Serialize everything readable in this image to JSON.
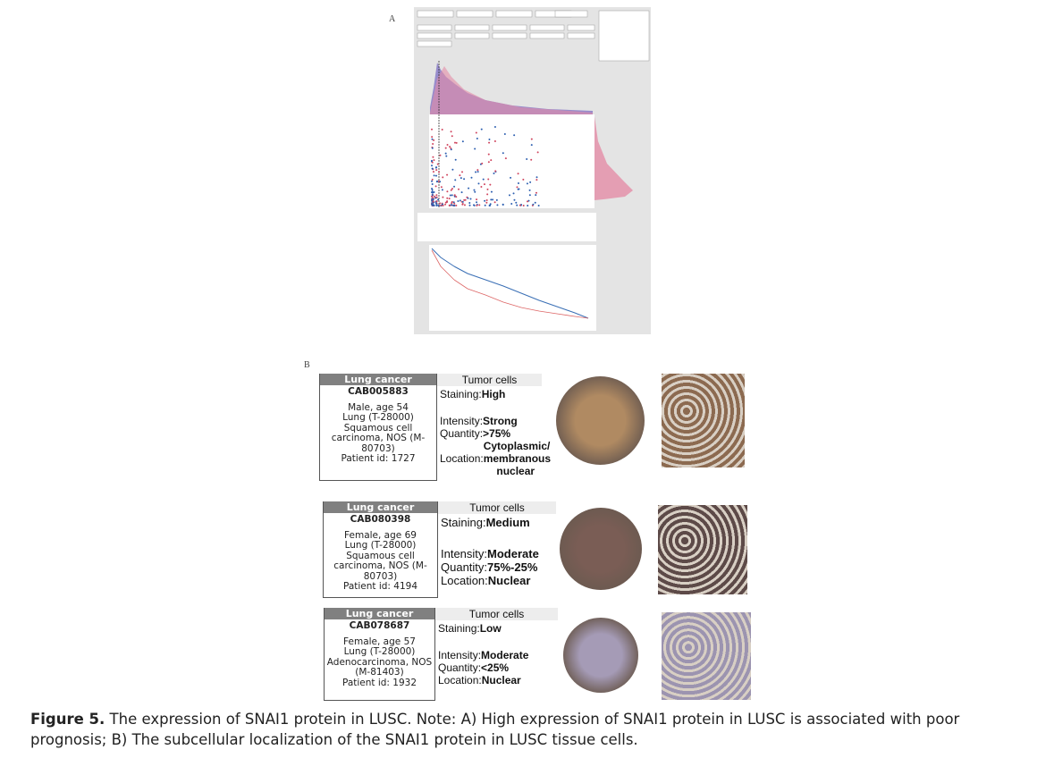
{
  "panel_a": {
    "label": "A"
  },
  "panel_b": {
    "label": "B",
    "cards": [
      {
        "header": "Lung cancer",
        "antibody": "CAB005883",
        "patient": [
          "Male, age 54",
          "Lung (T-28000)",
          "Squamous cell carcinoma, NOS (M-80703)",
          "Patient id: 1727"
        ],
        "title": "Tumor cells",
        "staining": [
          "Staining:",
          "High"
        ],
        "intensity": [
          "Intensity:",
          "Strong"
        ],
        "quantity": [
          "Quantity:",
          ">75%"
        ],
        "location": [
          "Location:",
          "Cytoplasmic/ membranous nuclear"
        ]
      },
      {
        "header": "Lung cancer",
        "antibody": "CAB080398",
        "patient": [
          "Female, age 69",
          "Lung (T-28000)",
          "Squamous cell carcinoma, NOS (M-80703)",
          "Patient id: 4194"
        ],
        "title": "Tumor cells",
        "staining": [
          "Staining:",
          "Medium"
        ],
        "intensity": [
          "Intensity:",
          "Moderate"
        ],
        "quantity": [
          "Quantity:",
          "75%-25%"
        ],
        "location": [
          "Location:",
          "Nuclear"
        ]
      },
      {
        "header": "Lung cancer",
        "antibody": "CAB078687",
        "patient": [
          "Female, age 57",
          "Lung (T-28000)",
          "Adenocarcinoma, NOS (M-81403)",
          "Patient id: 1932"
        ],
        "title": "Tumor cells",
        "staining": [
          "Staining:",
          "Low"
        ],
        "intensity": [
          "Intensity:",
          "Moderate"
        ],
        "quantity": [
          "Quantity:",
          "<25%"
        ],
        "location": [
          "Location:",
          "Nuclear"
        ]
      }
    ]
  },
  "caption": {
    "label": "Figure 5.",
    "text": " The expression of SNAI1 protein in LUSC. Note: A) High expression of SNAI1 protein in LUSC is associated with poor prognosis; B) The subcellular localization of the SNAI1 protein in LUSC tissue cells."
  }
}
